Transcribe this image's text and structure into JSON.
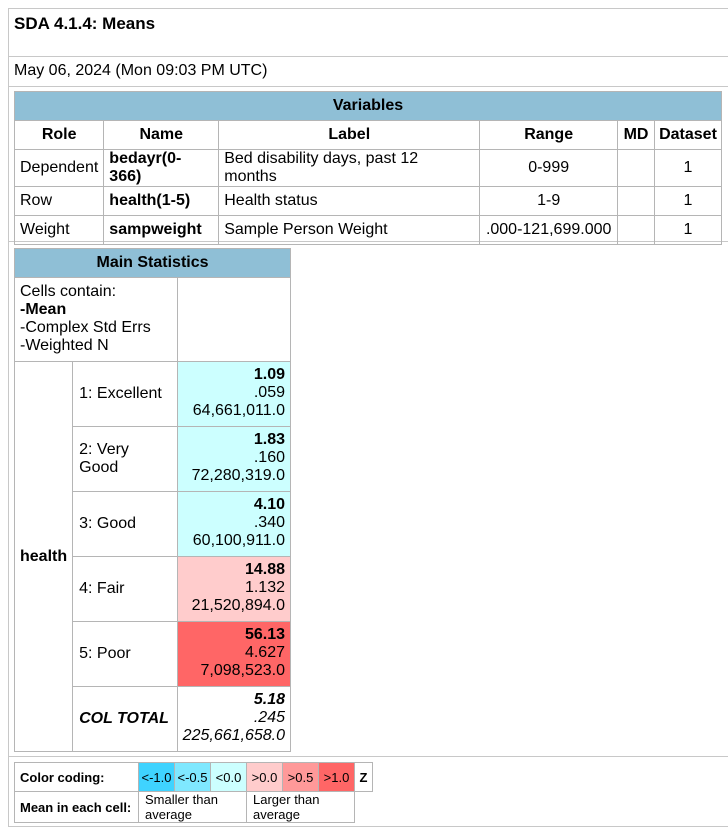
{
  "title": "SDA 4.1.4: Means",
  "date": "May 06, 2024 (Mon 09:03 PM UTC)",
  "variables": {
    "header": "Variables",
    "columns": [
      "Role",
      "Name",
      "Label",
      "Range",
      "MD",
      "Dataset"
    ],
    "rows": [
      {
        "role": "Dependent",
        "name": "bedayr(0-366)",
        "label": "Bed disability days, past 12 months",
        "range": "0-999",
        "md": "",
        "dataset": "1"
      },
      {
        "role": "Row",
        "name": "health(1-5)",
        "label": "Health status",
        "range": "1-9",
        "md": "",
        "dataset": "1"
      },
      {
        "role": "Weight",
        "name": "sampweight",
        "label": "Sample Person Weight",
        "range": ".000-121,699.000",
        "md": "",
        "dataset": "1"
      }
    ]
  },
  "main_statistics": {
    "header": "Main Statistics",
    "cells_contain": {
      "title": "Cells contain:",
      "line1": "-Mean",
      "line2": "-Complex Std Errs",
      "line3": "-Weighted N"
    },
    "row_variable": "health",
    "rows": [
      {
        "label": "1: Excellent",
        "mean": "1.09",
        "se": ".059",
        "n": "64,661,011.0"
      },
      {
        "label": "2: Very Good",
        "mean": "1.83",
        "se": ".160",
        "n": "72,280,319.0"
      },
      {
        "label": "3: Good",
        "mean": "4.10",
        "se": ".340",
        "n": "60,100,911.0"
      },
      {
        "label": "4: Fair",
        "mean": "14.88",
        "se": "1.132",
        "n": "21,520,894.0"
      },
      {
        "label": "5: Poor",
        "mean": "56.13",
        "se": "4.627",
        "n": "7,098,523.0"
      }
    ],
    "total": {
      "label": "COL TOTAL",
      "mean": "5.18",
      "se": ".245",
      "n": "225,661,658.0"
    }
  },
  "legend": {
    "color_coding_label": "Color coding:",
    "swatches": [
      "<-1.0",
      "<-0.5",
      "<0.0",
      ">0.0",
      ">0.5",
      ">1.0"
    ],
    "z_label": "Z",
    "mean_label": "Mean in each cell:",
    "smaller": "Smaller than average",
    "larger": "Larger than average"
  },
  "colors": {
    "header_bg": "#8fbfd6",
    "z_lt_neg1": "#3fd3ff",
    "z_lt_neg05": "#7fe8ff",
    "z_lt_0": "#ccffff",
    "z_gt_0": "#ffcccc",
    "z_gt_05": "#ff9999",
    "z_gt_1": "#ff6666"
  }
}
